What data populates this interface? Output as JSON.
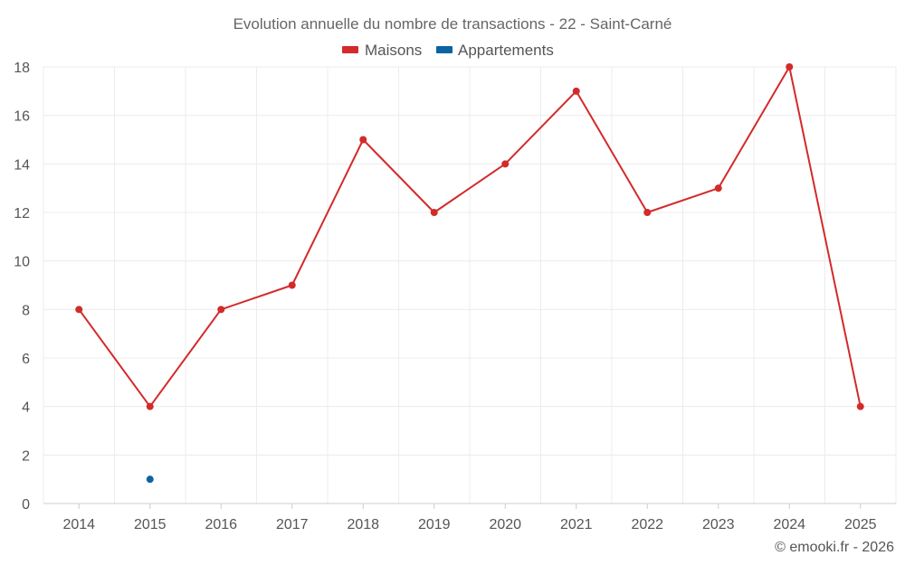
{
  "chart_data": {
    "type": "line",
    "title": "Evolution annuelle du nombre de transactions - 22 - Saint-Carné",
    "categories": [
      "2014",
      "2015",
      "2016",
      "2017",
      "2018",
      "2019",
      "2020",
      "2021",
      "2022",
      "2023",
      "2024",
      "2025"
    ],
    "series": [
      {
        "name": "Maisons",
        "color": "#d32a2a",
        "values": [
          8,
          4,
          8,
          9,
          15,
          12,
          14,
          17,
          12,
          13,
          18,
          4
        ]
      },
      {
        "name": "Appartements",
        "color": "#0b63a0",
        "values": [
          null,
          1,
          null,
          null,
          null,
          null,
          null,
          null,
          null,
          null,
          null,
          null
        ]
      }
    ],
    "ylim": [
      0,
      18
    ],
    "yticks": [
      0,
      2,
      4,
      6,
      8,
      10,
      12,
      14,
      16,
      18
    ],
    "grid": true,
    "legend": "top-center"
  },
  "footer": {
    "copyright": "© emooki.fr - 2026"
  }
}
